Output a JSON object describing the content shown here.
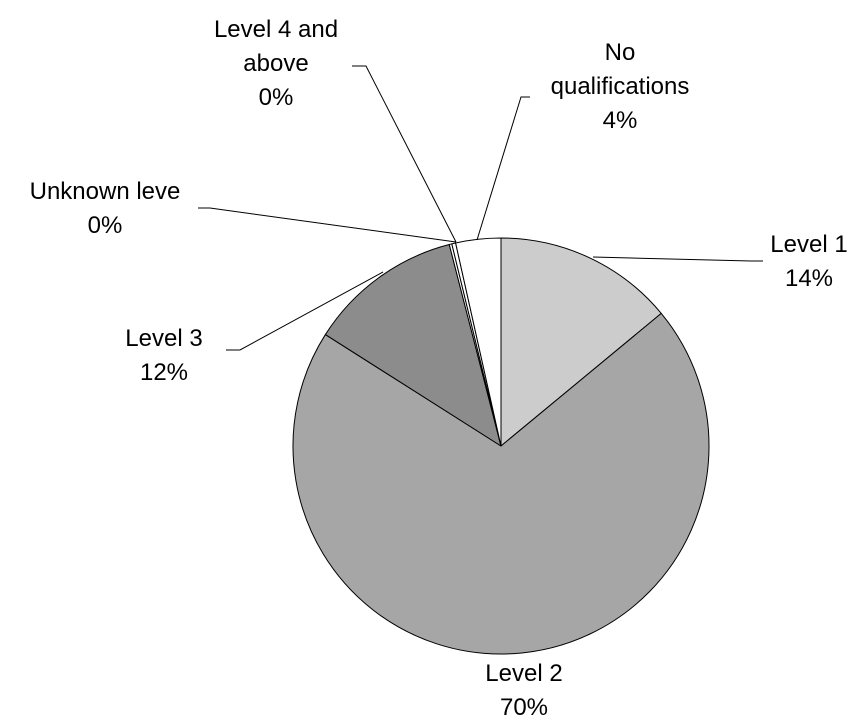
{
  "chart_data": {
    "type": "pie",
    "title": "",
    "slices": [
      {
        "label": "Level 1",
        "value": 14,
        "display": "14%",
        "color": "#cccccc"
      },
      {
        "label": "Level 2",
        "value": 70,
        "display": "70%",
        "color": "#a6a6a6"
      },
      {
        "label": "Level 3",
        "value": 12,
        "display": "12%",
        "color": "#8c8c8c"
      },
      {
        "label": "Unknown leve",
        "value": 0.2,
        "display": "0%",
        "color": "#ffffff"
      },
      {
        "label": "Level 4 and above",
        "value": 0.3,
        "display": "0%",
        "color": "#ffffff"
      },
      {
        "label": "No qualifications",
        "value": 3.5,
        "display": "4%",
        "color": "#ffffff"
      }
    ],
    "legend": "none",
    "start_angle": "12 o'clock",
    "direction": "clockwise"
  }
}
